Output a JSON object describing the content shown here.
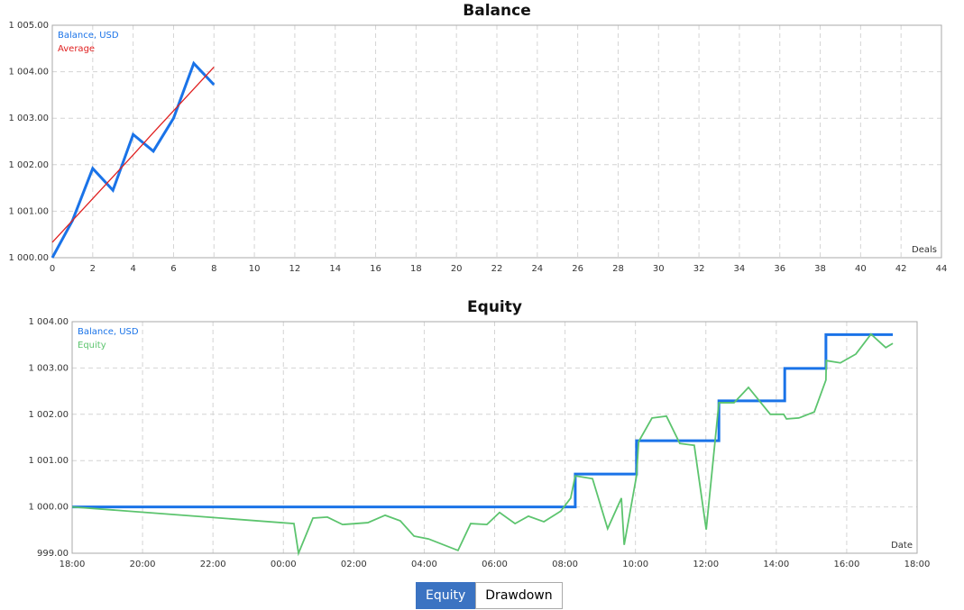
{
  "chart_data": [
    {
      "type": "line",
      "title": "Balance",
      "xlabel": "Deals",
      "x": [
        0,
        1,
        2,
        3,
        4,
        5,
        6,
        7,
        8
      ],
      "series": [
        {
          "name": "Balance, USD",
          "color": "#1a73e8",
          "width": 3,
          "values": [
            1000.0,
            1000.8,
            1001.92,
            1001.45,
            1002.65,
            1002.29,
            1003.0,
            1004.18,
            1003.72
          ]
        },
        {
          "name": "Average",
          "color": "#e02020",
          "width": 1.3,
          "values": [
            1000.33,
            1000.8,
            1001.27,
            1001.74,
            1002.21,
            1002.69,
            1003.16,
            1003.63,
            1004.1
          ]
        }
      ],
      "xlim": [
        0,
        44
      ],
      "xticks": [
        0,
        2,
        4,
        6,
        8,
        10,
        12,
        14,
        16,
        18,
        20,
        22,
        24,
        26,
        28,
        30,
        32,
        34,
        36,
        38,
        40,
        42,
        44
      ],
      "ylim": [
        1000,
        1005
      ],
      "yticks": [
        {
          "value": 1000,
          "label": "1 000.00"
        },
        {
          "value": 1001,
          "label": "1 001.00"
        },
        {
          "value": 1002,
          "label": "1 002.00"
        },
        {
          "value": 1003,
          "label": "1 003.00"
        },
        {
          "value": 1004,
          "label": "1 004.00"
        },
        {
          "value": 1005,
          "label": "1 005.00"
        }
      ],
      "grid": true
    },
    {
      "type": "line",
      "title": "Equity",
      "xlabel": "Date",
      "series": [
        {
          "name": "Balance, USD",
          "color": "#1a73e8",
          "width": 3,
          "x": [
            18,
            32.29,
            32.29,
            34.03,
            34.03,
            36.37,
            36.37,
            38.24,
            38.24,
            39.41,
            39.41,
            41.31
          ],
          "values": [
            1000,
            1000,
            1000.71,
            1000.71,
            1001.43,
            1001.43,
            1002.29,
            1002.29,
            1002.99,
            1002.99,
            1003.72,
            1003.72
          ]
        },
        {
          "name": "Equity",
          "color": "#5cc46e",
          "width": 1.8,
          "x": [
            18,
            24.3,
            24.43,
            24.84,
            25.25,
            25.68,
            26.4,
            26.89,
            27.32,
            27.71,
            28.12,
            28.96,
            29.32,
            29.78,
            30.14,
            30.58,
            30.96,
            31.4,
            31.88,
            32.16,
            32.29,
            32.78,
            33.21,
            33.6,
            33.68,
            34.03,
            34.09,
            34.47,
            34.88,
            35.26,
            35.67,
            36.01,
            36.37,
            36.8,
            37.21,
            37.83,
            38.21,
            38.29,
            38.64,
            39.08,
            39.41,
            39.42,
            39.82,
            40.26,
            40.69,
            41.11,
            41.31
          ],
          "values": [
            1000.0,
            999.64,
            999.0,
            999.76,
            999.78,
            999.62,
            999.66,
            999.82,
            999.7,
            999.37,
            999.31,
            999.06,
            999.64,
            999.62,
            999.88,
            999.64,
            999.8,
            999.68,
            999.91,
            1000.19,
            1000.67,
            1000.61,
            999.53,
            1000.19,
            999.18,
            1000.67,
            1001.41,
            1001.92,
            1001.96,
            1001.37,
            1001.33,
            999.51,
            1002.25,
            1002.25,
            1002.58,
            1002.0,
            1002.0,
            1001.9,
            1001.92,
            1002.05,
            1002.74,
            1003.16,
            1003.11,
            1003.3,
            1003.73,
            1003.44,
            1003.53
          ]
        }
      ],
      "xlim": [
        18,
        42
      ],
      "xticks": [
        {
          "value": 18,
          "label": "18:00"
        },
        {
          "value": 20,
          "label": "20:00"
        },
        {
          "value": 22,
          "label": "22:00"
        },
        {
          "value": 24,
          "label": "00:00"
        },
        {
          "value": 26,
          "label": "02:00"
        },
        {
          "value": 28,
          "label": "04:00"
        },
        {
          "value": 30,
          "label": "06:00"
        },
        {
          "value": 32,
          "label": "08:00"
        },
        {
          "value": 34,
          "label": "10:00"
        },
        {
          "value": 36,
          "label": "12:00"
        },
        {
          "value": 38,
          "label": "14:00"
        },
        {
          "value": 40,
          "label": "16:00"
        },
        {
          "value": 42,
          "label": "18:00"
        }
      ],
      "ylim": [
        999,
        1004
      ],
      "yticks": [
        {
          "value": 999,
          "label": "999.00"
        },
        {
          "value": 1000,
          "label": "1 000.00"
        },
        {
          "value": 1001,
          "label": "1 001.00"
        },
        {
          "value": 1002,
          "label": "1 002.00"
        },
        {
          "value": 1003,
          "label": "1 003.00"
        },
        {
          "value": 1004,
          "label": "1 004.00"
        }
      ],
      "grid": true
    }
  ],
  "tabs": [
    "Equity",
    "Drawdown"
  ]
}
